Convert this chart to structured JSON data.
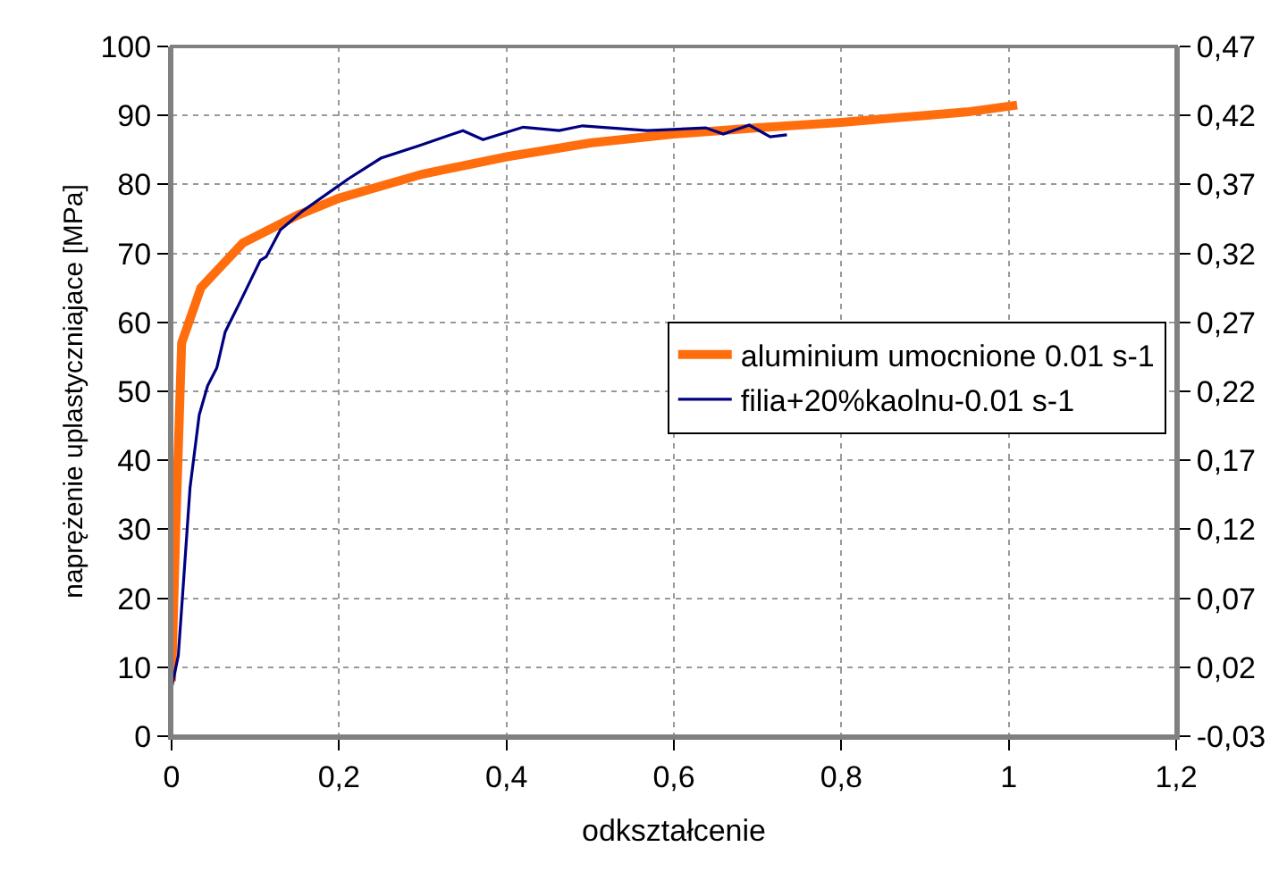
{
  "chart_data": {
    "type": "line",
    "xlabel": "odkształcenie",
    "ylabel": "naprężenie uplastyczniajace [MPa]",
    "xlim": [
      0,
      1.2
    ],
    "xticks": [
      0,
      {
        "value": 0.2,
        "label": "0,2"
      },
      {
        "value": 0.4,
        "label": "0,4"
      },
      {
        "value": 0.6,
        "label": "0,6"
      },
      {
        "value": 0.8,
        "label": "0,8"
      },
      1,
      {
        "value": 1.2,
        "label": "1,2"
      }
    ],
    "ylim": [
      0,
      100
    ],
    "yticks": [
      0,
      10,
      20,
      30,
      40,
      50,
      60,
      70,
      80,
      90,
      100
    ],
    "y2lim": [
      -0.03,
      0.47
    ],
    "y2ticks": [
      {
        "value": -0.03,
        "label": "-0,03"
      },
      {
        "value": 0.02,
        "label": "0,02"
      },
      {
        "value": 0.07,
        "label": "0,07"
      },
      {
        "value": 0.12,
        "label": "0,12"
      },
      {
        "value": 0.17,
        "label": "0,17"
      },
      {
        "value": 0.22,
        "label": "0,22"
      },
      {
        "value": 0.27,
        "label": "0,27"
      },
      {
        "value": 0.32,
        "label": "0,32"
      },
      {
        "value": 0.37,
        "label": "0,37"
      },
      {
        "value": 0.42,
        "label": "0,42"
      },
      {
        "value": 0.47,
        "label": "0,47"
      }
    ],
    "grid": true,
    "legend": "right",
    "marker": "none",
    "line_style": "solid",
    "series": [
      {
        "name": "aluminium umocnione 0.01 s-1",
        "color": "#ff6d0d",
        "x": [
          0,
          0.005,
          0.012,
          0.035,
          0.085,
          0.15,
          0.2,
          0.3,
          0.4,
          0.5,
          0.6,
          0.7,
          0.8,
          0.9,
          0.95,
          1.01
        ],
        "values": [
          8,
          30,
          57,
          65,
          71.5,
          75.5,
          78,
          81.5,
          84,
          86,
          87.3,
          88.2,
          89,
          90,
          90.5,
          91.5
        ]
      },
      {
        "name": "filia+20%kaolnu-0.01 s-1",
        "color": "#000080",
        "x": [
          0,
          0.008,
          0.014,
          0.022,
          0.033,
          0.043,
          0.054,
          0.064,
          0.082,
          0.106,
          0.113,
          0.13,
          0.155,
          0.19,
          0.211,
          0.25,
          0.295,
          0.348,
          0.372,
          0.42,
          0.463,
          0.491,
          0.568,
          0.638,
          0.659,
          0.69,
          0.715,
          0.735
        ],
        "values": [
          7,
          11.7,
          22,
          36,
          46.6,
          50.8,
          53.4,
          58.6,
          63,
          69,
          69.5,
          73.4,
          76,
          79,
          80.8,
          83.8,
          85.6,
          87.8,
          86.5,
          88.3,
          87.8,
          88.5,
          87.8,
          88.2,
          87.3,
          88.6,
          86.9,
          87.2
        ]
      }
    ]
  }
}
